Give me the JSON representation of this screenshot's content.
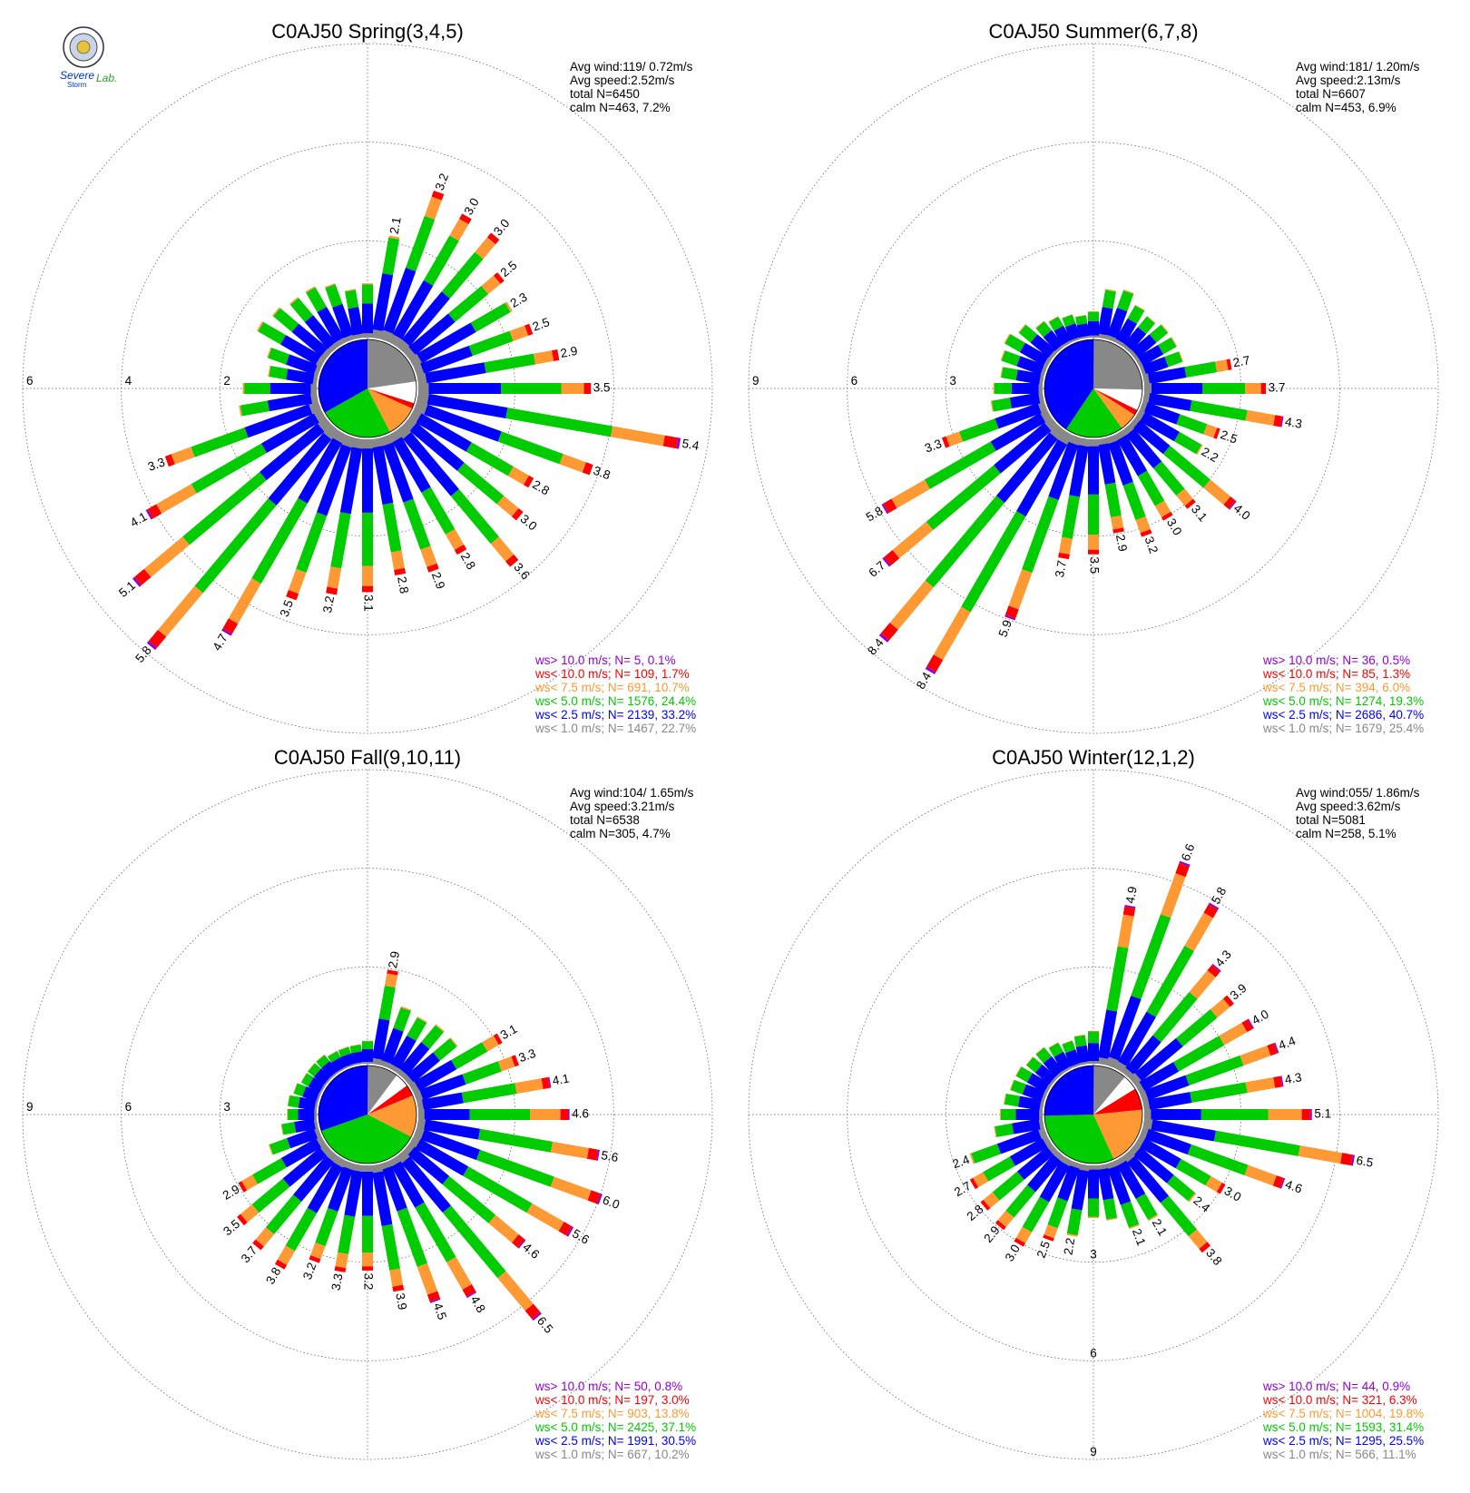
{
  "colors": {
    "gt10": "#9400d3",
    "lt10": "#ff0000",
    "lt75": "#ff9933",
    "lt5": "#00cc00",
    "lt25": "#0000ff",
    "lt1": "#888888",
    "calm": "#ffffff"
  },
  "logo_text": {
    "line1": "Severe",
    "line2": "Storm",
    "line3": "Lab."
  },
  "chart_data": [
    {
      "type": "wind-rose",
      "title": "C0AJ50 Spring(3,4,5)",
      "stats": [
        {
          "label": "Avg wind:",
          "value": "119/ 0.72m/s"
        },
        {
          "label": "Avg speed:",
          "value": "2.52m/s"
        },
        {
          "label": "total N=",
          "value": "6450"
        },
        {
          "label": "calm N=",
          "value": "463,   7.2%"
        }
      ],
      "radial_ticks": [
        "6",
        "4",
        "2"
      ],
      "radial_values": [
        2,
        4,
        6
      ],
      "directions": 36,
      "bars": [
        {
          "dir": 10,
          "total": 2.1,
          "label": "2.1"
        },
        {
          "dir": 20,
          "total": 3.2,
          "label": "3.2"
        },
        {
          "dir": 30,
          "total": 3.0,
          "label": "3.0"
        },
        {
          "dir": 40,
          "total": 3.0,
          "label": "3.0"
        },
        {
          "dir": 50,
          "total": 2.5,
          "label": "2.5"
        },
        {
          "dir": 60,
          "total": 2.3,
          "label": "2.3"
        },
        {
          "dir": 70,
          "total": 2.5,
          "label": "2.5"
        },
        {
          "dir": 80,
          "total": 2.9,
          "label": "2.9"
        },
        {
          "dir": 90,
          "total": 3.5,
          "label": "3.5"
        },
        {
          "dir": 100,
          "total": 5.4,
          "label": "5.4"
        },
        {
          "dir": 110,
          "total": 3.8,
          "label": "3.8"
        },
        {
          "dir": 120,
          "total": 2.8,
          "label": "2.8"
        },
        {
          "dir": 130,
          "total": 3.0,
          "label": "3.0"
        },
        {
          "dir": 140,
          "total": 3.6,
          "label": "3.6"
        },
        {
          "dir": 150,
          "total": 2.8,
          "label": "2.8"
        },
        {
          "dir": 160,
          "total": 2.9,
          "label": "2.9"
        },
        {
          "dir": 170,
          "total": 2.8,
          "label": "2.8"
        },
        {
          "dir": 180,
          "total": 3.1,
          "label": "3.1"
        },
        {
          "dir": 190,
          "total": 3.2,
          "label": "3.2"
        },
        {
          "dir": 200,
          "total": 3.5,
          "label": "3.5"
        },
        {
          "dir": 210,
          "total": 4.7,
          "label": "4.7"
        },
        {
          "dir": 220,
          "total": 5.8,
          "label": "5.8"
        },
        {
          "dir": 230,
          "total": 5.1,
          "label": "5.1"
        },
        {
          "dir": 240,
          "total": 4.1,
          "label": "4.1"
        },
        {
          "dir": 250,
          "total": 3.3,
          "label": "3.3"
        },
        {
          "dir": 260,
          "total": 1.6,
          "label": ""
        },
        {
          "dir": 270,
          "total": 1.5,
          "label": ""
        },
        {
          "dir": 280,
          "total": 1.0,
          "label": ""
        },
        {
          "dir": 290,
          "total": 1.1,
          "label": ""
        },
        {
          "dir": 300,
          "total": 1.5,
          "label": ""
        },
        {
          "dir": 310,
          "total": 1.4,
          "label": ""
        },
        {
          "dir": 320,
          "total": 1.3,
          "label": ""
        },
        {
          "dir": 330,
          "total": 1.3,
          "label": ""
        },
        {
          "dir": 340,
          "total": 1.2,
          "label": ""
        },
        {
          "dir": 350,
          "total": 1.0,
          "label": ""
        },
        {
          "dir": 360,
          "total": 1.1,
          "label": ""
        }
      ],
      "pie": [
        {
          "cls": "lt1",
          "pct": 22.7
        },
        {
          "cls": "calm",
          "pct": 7.2
        },
        {
          "cls": "lt10",
          "pct": 1.8
        },
        {
          "cls": "lt75",
          "pct": 10.7
        },
        {
          "cls": "lt5",
          "pct": 24.4
        },
        {
          "cls": "lt25",
          "pct": 33.2
        }
      ],
      "legend": [
        {
          "cls": "gt10",
          "text": "ws> 10.0 m/s; N=     5,  0.1%"
        },
        {
          "cls": "lt10",
          "text": "ws< 10.0 m/s; N=   109,  1.7%"
        },
        {
          "cls": "lt75",
          "text": "ws<  7.5 m/s; N=   691, 10.7%"
        },
        {
          "cls": "lt5",
          "text": "ws<  5.0 m/s; N=  1576, 24.4%"
        },
        {
          "cls": "lt25",
          "text": "ws<  2.5 m/s; N=  2139, 33.2%"
        },
        {
          "cls": "lt1",
          "text": "ws<  1.0 m/s; N=  1467, 22.7%"
        }
      ]
    },
    {
      "type": "wind-rose",
      "title": "C0AJ50 Summer(6,7,8)",
      "stats": [
        {
          "label": "Avg wind:",
          "value": "181/ 1.20m/s"
        },
        {
          "label": "Avg speed:",
          "value": "2.13m/s"
        },
        {
          "label": "total N=",
          "value": "6607"
        },
        {
          "label": "calm N=",
          "value": "453,   6.9%"
        }
      ],
      "radial_ticks": [
        "9",
        "6",
        "3"
      ],
      "radial_values": [
        3,
        6,
        9
      ],
      "directions": 36,
      "bars": [
        {
          "dir": 10,
          "total": 1.5,
          "label": ""
        },
        {
          "dir": 20,
          "total": 1.6,
          "label": ""
        },
        {
          "dir": 30,
          "total": 1.3,
          "label": ""
        },
        {
          "dir": 40,
          "total": 1.2,
          "label": ""
        },
        {
          "dir": 50,
          "total": 1.3,
          "label": ""
        },
        {
          "dir": 60,
          "total": 1.3,
          "label": ""
        },
        {
          "dir": 70,
          "total": 1.3,
          "label": ""
        },
        {
          "dir": 80,
          "total": 2.7,
          "label": "2.7"
        },
        {
          "dir": 90,
          "total": 3.7,
          "label": "3.7"
        },
        {
          "dir": 100,
          "total": 4.3,
          "label": "4.3"
        },
        {
          "dir": 110,
          "total": 2.5,
          "label": "2.5"
        },
        {
          "dir": 120,
          "total": 2.2,
          "label": "2.2"
        },
        {
          "dir": 130,
          "total": 4.0,
          "label": "4.0"
        },
        {
          "dir": 140,
          "total": 3.1,
          "label": "3.1"
        },
        {
          "dir": 150,
          "total": 3.0,
          "label": "3.0"
        },
        {
          "dir": 160,
          "total": 3.2,
          "label": "3.2"
        },
        {
          "dir": 170,
          "total": 2.9,
          "label": "2.9"
        },
        {
          "dir": 180,
          "total": 3.5,
          "label": "3.5"
        },
        {
          "dir": 190,
          "total": 3.7,
          "label": "3.7"
        },
        {
          "dir": 200,
          "total": 5.9,
          "label": "5.9"
        },
        {
          "dir": 210,
          "total": 8.4,
          "label": "8.4"
        },
        {
          "dir": 220,
          "total": 8.4,
          "label": "8.4"
        },
        {
          "dir": 230,
          "total": 6.7,
          "label": "6.7"
        },
        {
          "dir": 240,
          "total": 5.8,
          "label": "5.8"
        },
        {
          "dir": 250,
          "total": 3.3,
          "label": "3.3"
        },
        {
          "dir": 260,
          "total": 1.6,
          "label": ""
        },
        {
          "dir": 270,
          "total": 1.5,
          "label": ""
        },
        {
          "dir": 280,
          "total": 1.3,
          "label": ""
        },
        {
          "dir": 290,
          "total": 1.4,
          "label": ""
        },
        {
          "dir": 300,
          "total": 1.5,
          "label": ""
        },
        {
          "dir": 310,
          "total": 1.3,
          "label": ""
        },
        {
          "dir": 320,
          "total": 1.0,
          "label": ""
        },
        {
          "dir": 330,
          "total": 0.9,
          "label": ""
        },
        {
          "dir": 340,
          "total": 0.8,
          "label": ""
        },
        {
          "dir": 350,
          "total": 0.7,
          "label": ""
        },
        {
          "dir": 360,
          "total": 0.8,
          "label": ""
        }
      ],
      "pie": [
        {
          "cls": "lt1",
          "pct": 25.4
        },
        {
          "cls": "calm",
          "pct": 6.9
        },
        {
          "cls": "lt10",
          "pct": 1.8
        },
        {
          "cls": "lt75",
          "pct": 6.0
        },
        {
          "cls": "lt5",
          "pct": 19.3
        },
        {
          "cls": "lt25",
          "pct": 40.7
        }
      ],
      "legend": [
        {
          "cls": "gt10",
          "text": "ws> 10.0 m/s; N=    36,  0.5%"
        },
        {
          "cls": "lt10",
          "text": "ws< 10.0 m/s; N=    85,  1.3%"
        },
        {
          "cls": "lt75",
          "text": "ws<  7.5 m/s; N=   394,  6.0%"
        },
        {
          "cls": "lt5",
          "text": "ws<  5.0 m/s; N=  1274, 19.3%"
        },
        {
          "cls": "lt25",
          "text": "ws<  2.5 m/s; N=  2686, 40.7%"
        },
        {
          "cls": "lt1",
          "text": "ws<  1.0 m/s; N=  1679, 25.4%"
        }
      ]
    },
    {
      "type": "wind-rose",
      "title": "C0AJ50 Fall(9,10,11)",
      "stats": [
        {
          "label": "Avg wind:",
          "value": "104/ 1.65m/s"
        },
        {
          "label": "Avg speed:",
          "value": "3.21m/s"
        },
        {
          "label": "total N=",
          "value": "6538"
        },
        {
          "label": "calm N=",
          "value": "305,   4.7%"
        }
      ],
      "radial_ticks": [
        "9",
        "6",
        "3"
      ],
      "radial_values": [
        3,
        6,
        9
      ],
      "directions": 36,
      "bars": [
        {
          "dir": 10,
          "total": 2.9,
          "label": "2.9"
        },
        {
          "dir": 20,
          "total": 1.9,
          "label": ""
        },
        {
          "dir": 30,
          "total": 1.8,
          "label": ""
        },
        {
          "dir": 40,
          "total": 1.9,
          "label": ""
        },
        {
          "dir": 50,
          "total": 1.9,
          "label": ""
        },
        {
          "dir": 60,
          "total": 3.1,
          "label": "3.1"
        },
        {
          "dir": 70,
          "total": 3.3,
          "label": "3.3"
        },
        {
          "dir": 80,
          "total": 4.1,
          "label": "4.1"
        },
        {
          "dir": 90,
          "total": 4.6,
          "label": "4.6"
        },
        {
          "dir": 100,
          "total": 5.6,
          "label": "5.6"
        },
        {
          "dir": 110,
          "total": 6.0,
          "label": "6.0"
        },
        {
          "dir": 120,
          "total": 5.6,
          "label": "5.6"
        },
        {
          "dir": 130,
          "total": 4.6,
          "label": "4.6"
        },
        {
          "dir": 140,
          "total": 6.5,
          "label": "6.5"
        },
        {
          "dir": 150,
          "total": 4.8,
          "label": "4.8"
        },
        {
          "dir": 160,
          "total": 4.5,
          "label": "4.5"
        },
        {
          "dir": 170,
          "total": 3.9,
          "label": "3.9"
        },
        {
          "dir": 180,
          "total": 3.2,
          "label": "3.2"
        },
        {
          "dir": 190,
          "total": 3.3,
          "label": "3.3"
        },
        {
          "dir": 200,
          "total": 3.2,
          "label": "3.2"
        },
        {
          "dir": 210,
          "total": 3.8,
          "label": "3.8"
        },
        {
          "dir": 220,
          "total": 3.7,
          "label": "3.7"
        },
        {
          "dir": 230,
          "total": 3.5,
          "label": "3.5"
        },
        {
          "dir": 240,
          "total": 2.9,
          "label": "2.9"
        },
        {
          "dir": 250,
          "total": 1.6,
          "label": ""
        },
        {
          "dir": 260,
          "total": 1.1,
          "label": ""
        },
        {
          "dir": 270,
          "total": 0.9,
          "label": ""
        },
        {
          "dir": 280,
          "total": 0.9,
          "label": ""
        },
        {
          "dir": 290,
          "total": 0.8,
          "label": ""
        },
        {
          "dir": 300,
          "total": 0.7,
          "label": ""
        },
        {
          "dir": 310,
          "total": 0.7,
          "label": ""
        },
        {
          "dir": 320,
          "total": 0.7,
          "label": ""
        },
        {
          "dir": 330,
          "total": 0.6,
          "label": ""
        },
        {
          "dir": 340,
          "total": 0.6,
          "label": ""
        },
        {
          "dir": 350,
          "total": 0.6,
          "label": ""
        },
        {
          "dir": 360,
          "total": 0.7,
          "label": ""
        }
      ],
      "pie": [
        {
          "cls": "lt1",
          "pct": 10.2
        },
        {
          "cls": "calm",
          "pct": 4.7
        },
        {
          "cls": "lt10",
          "pct": 3.8
        },
        {
          "cls": "lt75",
          "pct": 13.8
        },
        {
          "cls": "lt5",
          "pct": 37.1
        },
        {
          "cls": "lt25",
          "pct": 30.5
        }
      ],
      "legend": [
        {
          "cls": "gt10",
          "text": "ws> 10.0 m/s; N=    50,  0.8%"
        },
        {
          "cls": "lt10",
          "text": "ws< 10.0 m/s; N=   197,  3.0%"
        },
        {
          "cls": "lt75",
          "text": "ws<  7.5 m/s; N=   903, 13.8%"
        },
        {
          "cls": "lt5",
          "text": "ws<  5.0 m/s; N=  2425, 37.1%"
        },
        {
          "cls": "lt25",
          "text": "ws<  2.5 m/s; N=  1991, 30.5%"
        },
        {
          "cls": "lt1",
          "text": "ws<  1.0 m/s; N=   667, 10.2%"
        }
      ]
    },
    {
      "type": "wind-rose",
      "title": "C0AJ50 Winter(12,1,2)",
      "stats": [
        {
          "label": "Avg wind:",
          "value": "055/ 1.86m/s"
        },
        {
          "label": "Avg speed:",
          "value": "3.62m/s"
        },
        {
          "label": "total N=",
          "value": "5081"
        },
        {
          "label": "calm N=",
          "value": "258,   5.1%"
        }
      ],
      "radial_ticks": [
        "3",
        "6",
        "9"
      ],
      "radial_values": [
        3,
        6,
        9
      ],
      "directions": 36,
      "bars": [
        {
          "dir": 10,
          "total": 4.9,
          "label": "4.9"
        },
        {
          "dir": 20,
          "total": 6.6,
          "label": "6.6"
        },
        {
          "dir": 30,
          "total": 5.8,
          "label": "5.8"
        },
        {
          "dir": 40,
          "total": 4.3,
          "label": "4.3"
        },
        {
          "dir": 50,
          "total": 3.9,
          "label": "3.9"
        },
        {
          "dir": 60,
          "total": 4.0,
          "label": "4.0"
        },
        {
          "dir": 70,
          "total": 4.4,
          "label": "4.4"
        },
        {
          "dir": 80,
          "total": 4.3,
          "label": "4.3"
        },
        {
          "dir": 90,
          "total": 5.1,
          "label": "5.1"
        },
        {
          "dir": 100,
          "total": 6.5,
          "label": "6.5"
        },
        {
          "dir": 110,
          "total": 4.6,
          "label": "4.6"
        },
        {
          "dir": 120,
          "total": 3.0,
          "label": "3.0"
        },
        {
          "dir": 130,
          "total": 2.4,
          "label": "2.4"
        },
        {
          "dir": 140,
          "total": 3.8,
          "label": "3.8"
        },
        {
          "dir": 150,
          "total": 2.1,
          "label": "2.1"
        },
        {
          "dir": 160,
          "total": 2.1,
          "label": "2.1"
        },
        {
          "dir": 170,
          "total": 1.7,
          "label": ""
        },
        {
          "dir": 180,
          "total": 1.6,
          "label": ""
        },
        {
          "dir": 190,
          "total": 2.2,
          "label": "2.2"
        },
        {
          "dir": 200,
          "total": 2.5,
          "label": "2.5"
        },
        {
          "dir": 210,
          "total": 3.0,
          "label": "3.0"
        },
        {
          "dir": 220,
          "total": 2.9,
          "label": "2.9"
        },
        {
          "dir": 230,
          "total": 2.8,
          "label": "2.8"
        },
        {
          "dir": 240,
          "total": 2.7,
          "label": "2.7"
        },
        {
          "dir": 250,
          "total": 2.4,
          "label": "2.4"
        },
        {
          "dir": 260,
          "total": 1.5,
          "label": ""
        },
        {
          "dir": 270,
          "total": 1.3,
          "label": ""
        },
        {
          "dir": 280,
          "total": 1.2,
          "label": ""
        },
        {
          "dir": 290,
          "total": 1.1,
          "label": ""
        },
        {
          "dir": 300,
          "total": 1.1,
          "label": ""
        },
        {
          "dir": 310,
          "total": 1.0,
          "label": ""
        },
        {
          "dir": 320,
          "total": 1.0,
          "label": ""
        },
        {
          "dir": 330,
          "total": 0.9,
          "label": ""
        },
        {
          "dir": 340,
          "total": 0.8,
          "label": ""
        },
        {
          "dir": 350,
          "total": 0.9,
          "label": ""
        },
        {
          "dir": 360,
          "total": 1.0,
          "label": ""
        }
      ],
      "pie": [
        {
          "cls": "lt1",
          "pct": 11.1
        },
        {
          "cls": "calm",
          "pct": 5.1
        },
        {
          "cls": "lt10",
          "pct": 7.2
        },
        {
          "cls": "lt75",
          "pct": 19.8
        },
        {
          "cls": "lt5",
          "pct": 31.4
        },
        {
          "cls": "lt25",
          "pct": 25.5
        }
      ],
      "legend": [
        {
          "cls": "gt10",
          "text": "ws> 10.0 m/s; N=    44,  0.9%"
        },
        {
          "cls": "lt10",
          "text": "ws< 10.0 m/s; N=   321,  6.3%"
        },
        {
          "cls": "lt75",
          "text": "ws<  7.5 m/s; N=  1004, 19.8%"
        },
        {
          "cls": "lt5",
          "text": "ws<  5.0 m/s; N=  1593, 31.4%"
        },
        {
          "cls": "lt25",
          "text": "ws<  2.5 m/s; N=  1295, 25.5%"
        },
        {
          "cls": "lt1",
          "text": "ws<  1.0 m/s; N=   566, 11.1%"
        }
      ]
    }
  ]
}
